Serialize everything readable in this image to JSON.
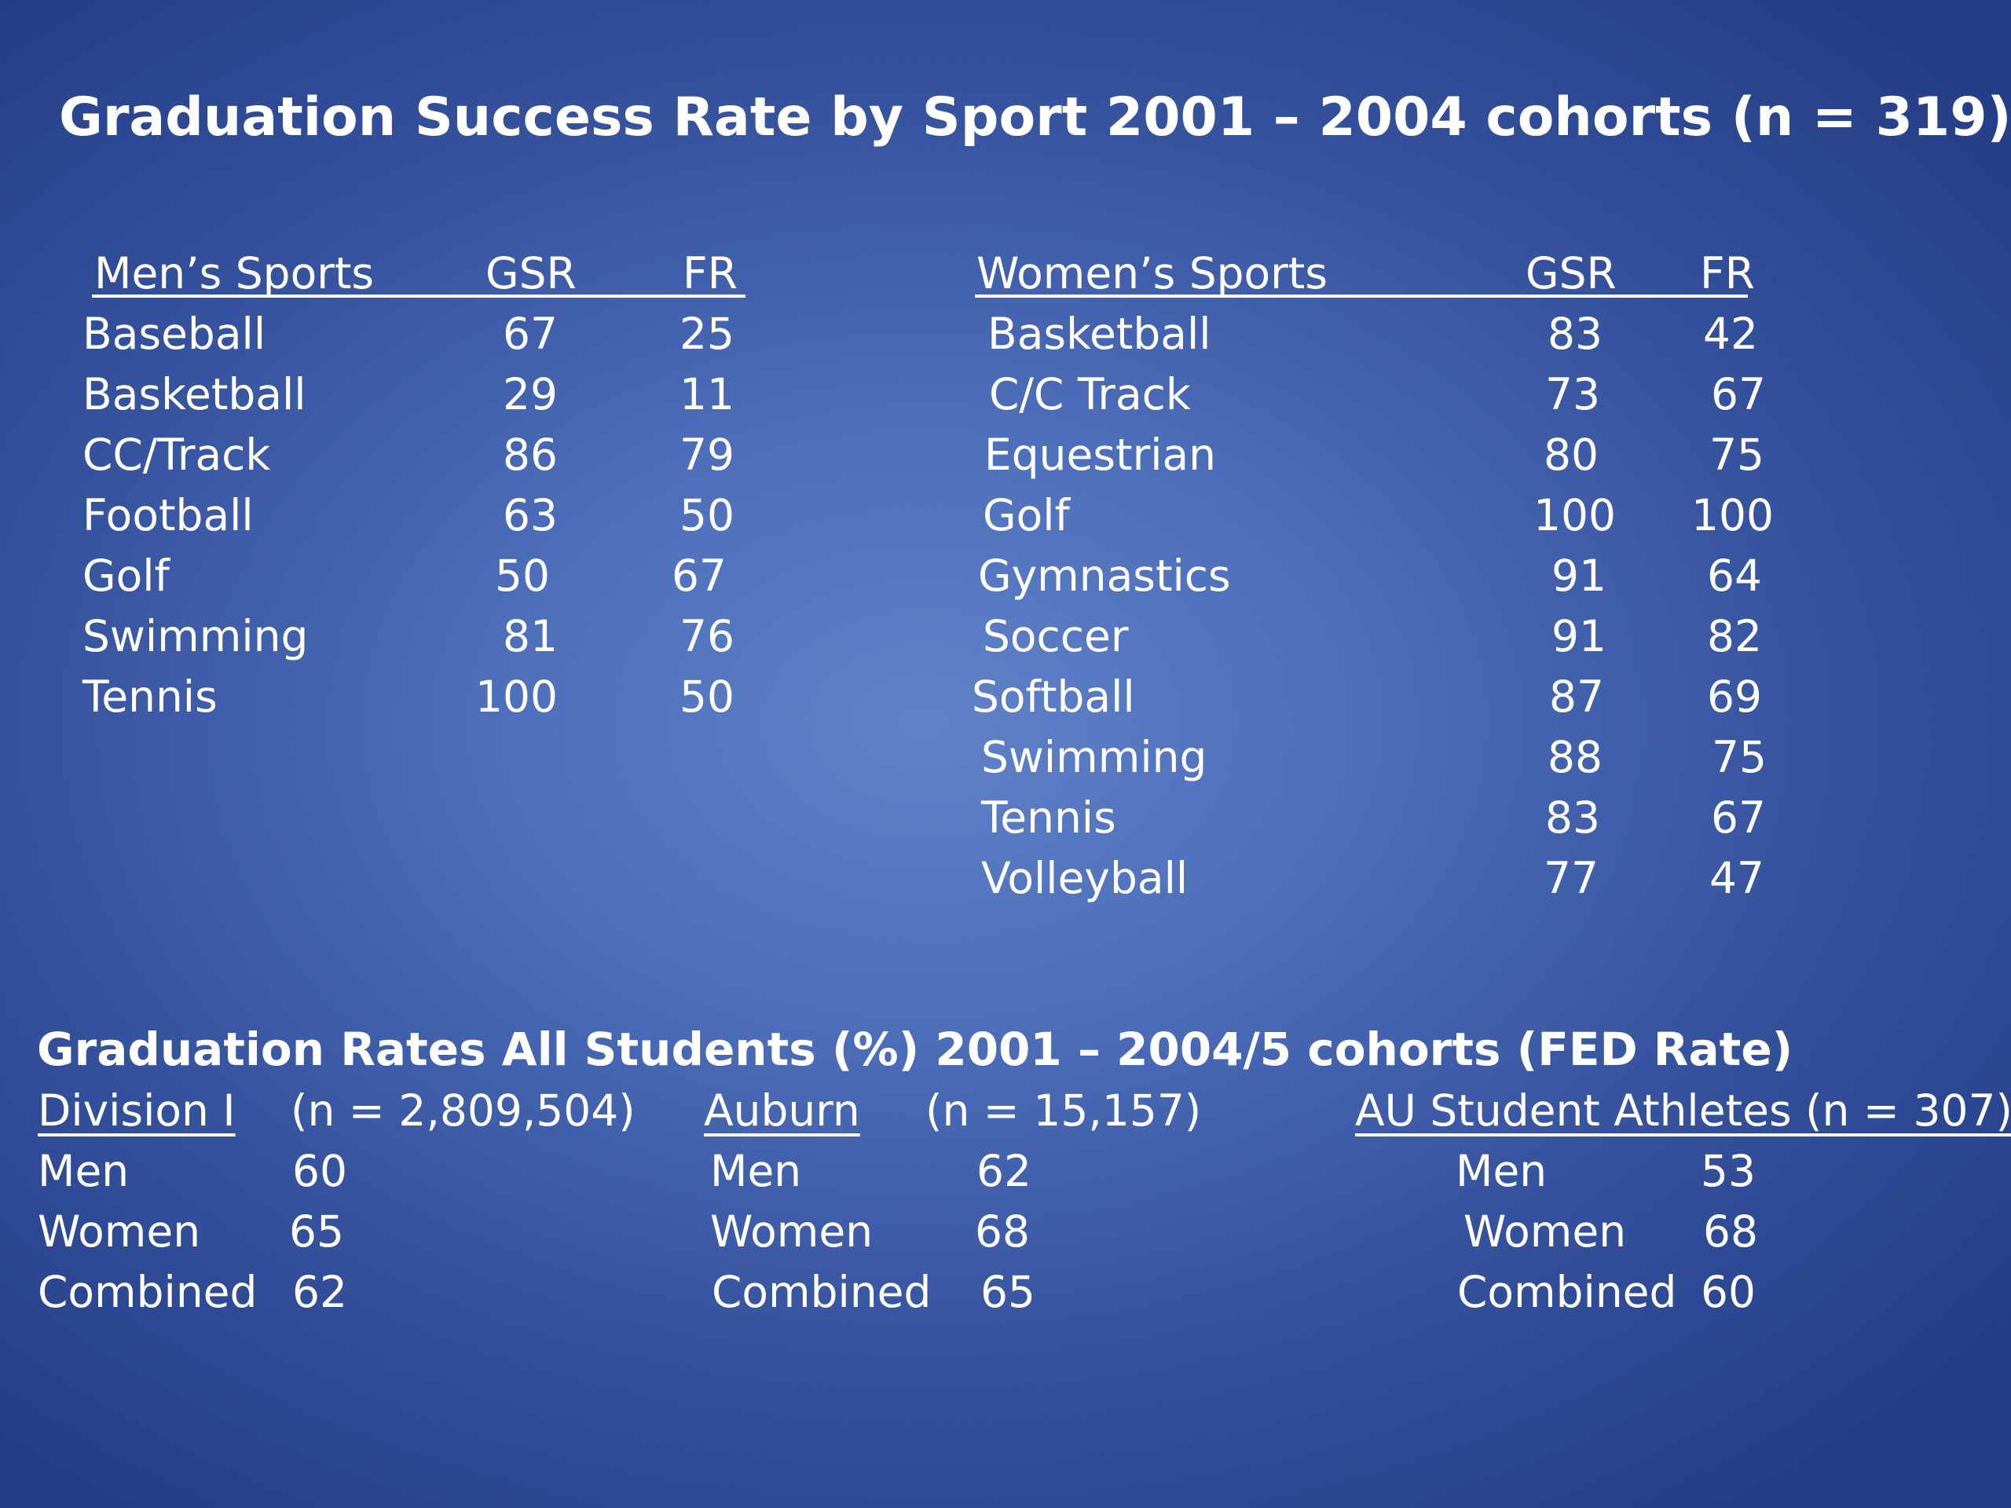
{
  "title": "Graduation Success Rate by Sport   2001 – 2004 cohorts  (n = 319)",
  "mens": {
    "header": {
      "sport": "Men’s Sports",
      "gsr": "GSR",
      "fr": "FR"
    },
    "rows": [
      {
        "sport": "Baseball",
        "gsr": "67",
        "fr": "25"
      },
      {
        "sport": "Basketball",
        "gsr": "29",
        "fr": "11"
      },
      {
        "sport": "CC/Track",
        "gsr": "86",
        "fr": "79"
      },
      {
        "sport": "Football",
        "gsr": "63",
        "fr": "50"
      },
      {
        "sport": "Golf",
        "gsr": "50",
        "fr": "67"
      },
      {
        "sport": "Swimming",
        "gsr": "81",
        "fr": "76"
      },
      {
        "sport": "Tennis",
        "gsr": "100",
        "fr": "50"
      }
    ]
  },
  "womens": {
    "header": {
      "sport": "Women’s Sports",
      "gsr": "GSR",
      "fr": "FR"
    },
    "rows": [
      {
        "sport": "Basketball",
        "gsr": "83",
        "fr": "42"
      },
      {
        "sport": "C/C Track",
        "gsr": "73",
        "fr": "67"
      },
      {
        "sport": "Equestrian",
        "gsr": "80",
        "fr": "75"
      },
      {
        "sport": "Golf",
        "gsr": "100",
        "fr": "100"
      },
      {
        "sport": "Gymnastics",
        "gsr": "91",
        "fr": "64"
      },
      {
        "sport": "Soccer",
        "gsr": "91",
        "fr": "82"
      },
      {
        "sport": "Softball",
        "gsr": "87",
        "fr": "69"
      },
      {
        "sport": "Swimming",
        "gsr": "88",
        "fr": "75"
      },
      {
        "sport": "Tennis",
        "gsr": "83",
        "fr": "67"
      },
      {
        "sport": "Volleyball",
        "gsr": "77",
        "fr": "47"
      }
    ]
  },
  "all_students": {
    "title": "Graduation Rates  All Students (%)  2001 – 2004/5 cohorts  (FED Rate)",
    "division": {
      "label": "Division I",
      "n": "(n = 2,809,504)",
      "rows": [
        {
          "label": "Men",
          "value": "60"
        },
        {
          "label": "Women",
          "value": "65"
        },
        {
          "label": "Combined",
          "value": "62"
        }
      ]
    },
    "auburn": {
      "label": "Auburn",
      "n": "(n = 15,157)",
      "rows": [
        {
          "label": "Men",
          "value": "62"
        },
        {
          "label": "Women",
          "value": "68"
        },
        {
          "label": "Combined",
          "value": "65"
        }
      ]
    },
    "athletes": {
      "label": "AU Student Athletes (n = 307)",
      "rows": [
        {
          "label": "Men",
          "value": "53"
        },
        {
          "label": "Women",
          "value": "68"
        },
        {
          "label": "Combined",
          "value": "60"
        }
      ]
    }
  }
}
